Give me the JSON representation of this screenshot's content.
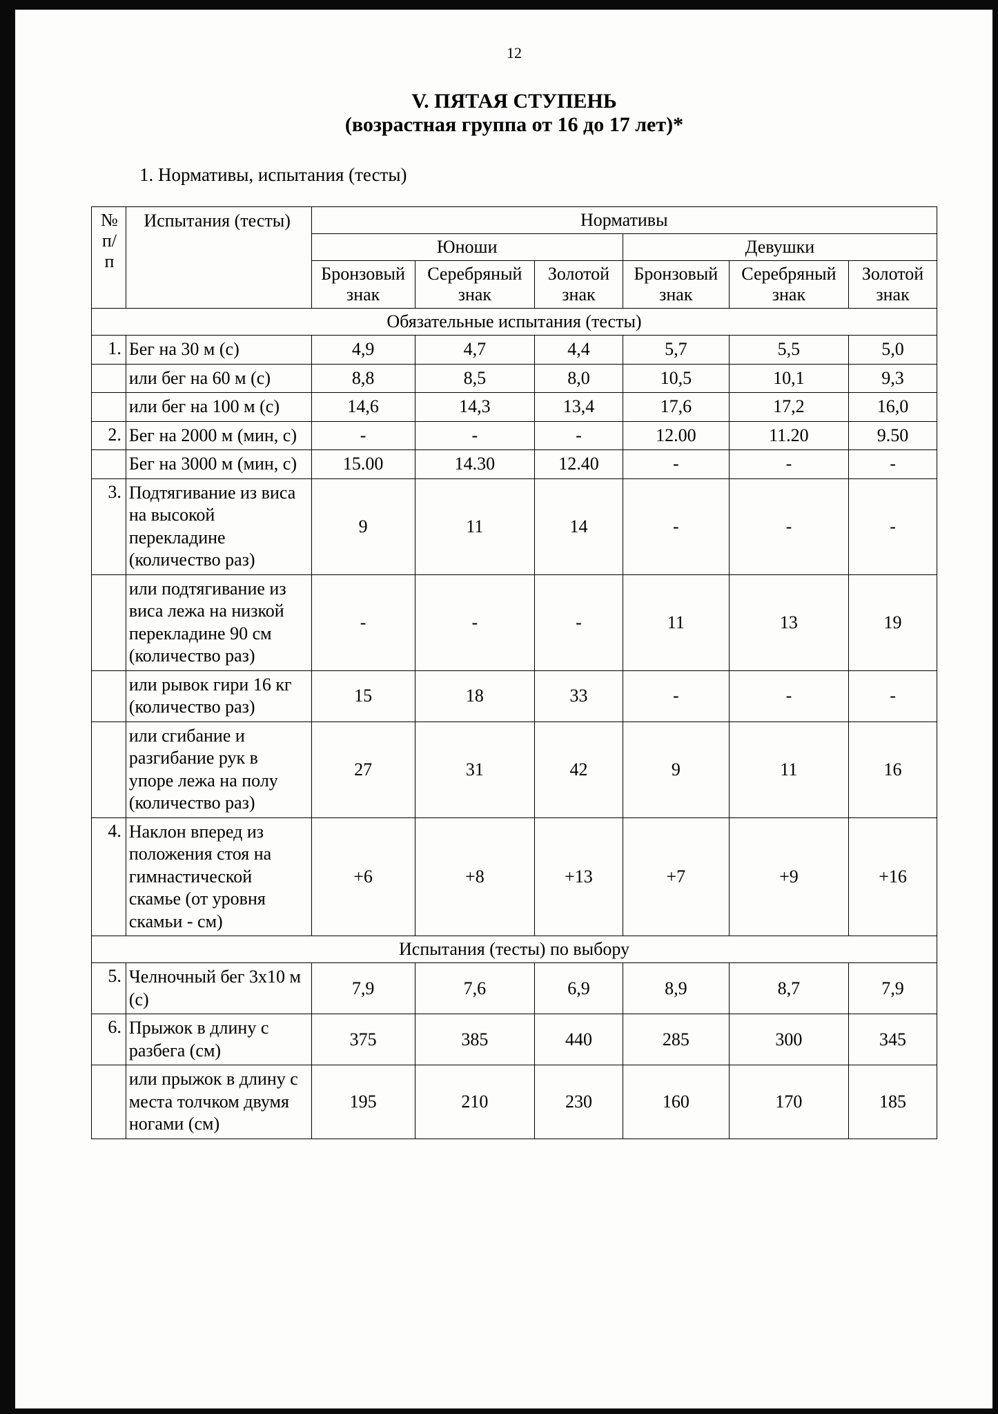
{
  "page_number": "12",
  "title_main": "V. ПЯТАЯ СТУПЕНЬ",
  "title_sub": "(возрастная группа от 16 до 17 лет)*",
  "section_label": "1. Нормативы, испытания (тесты)",
  "headers": {
    "num": "№ п/п",
    "tests": "Испытания (тесты)",
    "standards": "Нормативы",
    "boys": "Юноши",
    "girls": "Девушки",
    "bronze": "Бронзовый знак",
    "silver": "Серебряный знак",
    "gold": "Золотой знак"
  },
  "section_mandatory": "Обязательные испытания (тесты)",
  "section_optional": "Испытания (тесты) по выбору",
  "rows": [
    {
      "num": "1.",
      "label": "Бег на 30 м (с)",
      "b_b": "4,9",
      "b_s": "4,7",
      "b_g": "4,4",
      "g_b": "5,7",
      "g_s": "5,5",
      "g_g": "5,0"
    },
    {
      "num": "",
      "label": "или бег на 60 м (с)",
      "b_b": "8,8",
      "b_s": "8,5",
      "b_g": "8,0",
      "g_b": "10,5",
      "g_s": "10,1",
      "g_g": "9,3"
    },
    {
      "num": "",
      "label": "или бег на 100 м (с)",
      "b_b": "14,6",
      "b_s": "14,3",
      "b_g": "13,4",
      "g_b": "17,6",
      "g_s": "17,2",
      "g_g": "16,0"
    },
    {
      "num": "2.",
      "label": "Бег на 2000 м (мин, с)",
      "b_b": "-",
      "b_s": "-",
      "b_g": "-",
      "g_b": "12.00",
      "g_s": "11.20",
      "g_g": "9.50"
    },
    {
      "num": "",
      "label": "Бег на 3000 м (мин, с)",
      "b_b": "15.00",
      "b_s": "14.30",
      "b_g": "12.40",
      "g_b": "-",
      "g_s": "-",
      "g_g": "-"
    },
    {
      "num": "3.",
      "label": "Подтягивание из виса на высокой перекладине (количество раз)",
      "b_b": "9",
      "b_s": "11",
      "b_g": "14",
      "g_b": "-",
      "g_s": "-",
      "g_g": "-"
    },
    {
      "num": "",
      "label": "или подтягивание из виса лежа на низкой перекладине 90 см (количество раз)",
      "b_b": "-",
      "b_s": "-",
      "b_g": "-",
      "g_b": "11",
      "g_s": "13",
      "g_g": "19"
    },
    {
      "num": "",
      "label": "или рывок гири 16 кг (количество раз)",
      "b_b": "15",
      "b_s": "18",
      "b_g": "33",
      "g_b": "-",
      "g_s": "-",
      "g_g": "-"
    },
    {
      "num": "",
      "label": "или сгибание и разгибание рук в упоре лежа на полу (количество раз)",
      "b_b": "27",
      "b_s": "31",
      "b_g": "42",
      "g_b": "9",
      "g_s": "11",
      "g_g": "16"
    },
    {
      "num": "4.",
      "label": "Наклон вперед из положения стоя на гимнастической скамье (от уровня скамьи - см)",
      "b_b": "+6",
      "b_s": "+8",
      "b_g": "+13",
      "g_b": "+7",
      "g_s": "+9",
      "g_g": "+16"
    }
  ],
  "rows_optional": [
    {
      "num": "5.",
      "label": "Челночный бег 3х10 м (с)",
      "b_b": "7,9",
      "b_s": "7,6",
      "b_g": "6,9",
      "g_b": "8,9",
      "g_s": "8,7",
      "g_g": "7,9"
    },
    {
      "num": "6.",
      "label": "Прыжок в длину с разбега (см)",
      "b_b": "375",
      "b_s": "385",
      "b_g": "440",
      "g_b": "285",
      "g_s": "300",
      "g_g": "345"
    },
    {
      "num": "",
      "label": "или прыжок в длину с места толчком двумя ногами (см)",
      "b_b": "195",
      "b_s": "210",
      "b_g": "230",
      "g_b": "160",
      "g_s": "170",
      "g_g": "185"
    }
  ],
  "colors": {
    "page_bg": "#fdfdfb",
    "border": "#000000",
    "text": "#000000"
  }
}
